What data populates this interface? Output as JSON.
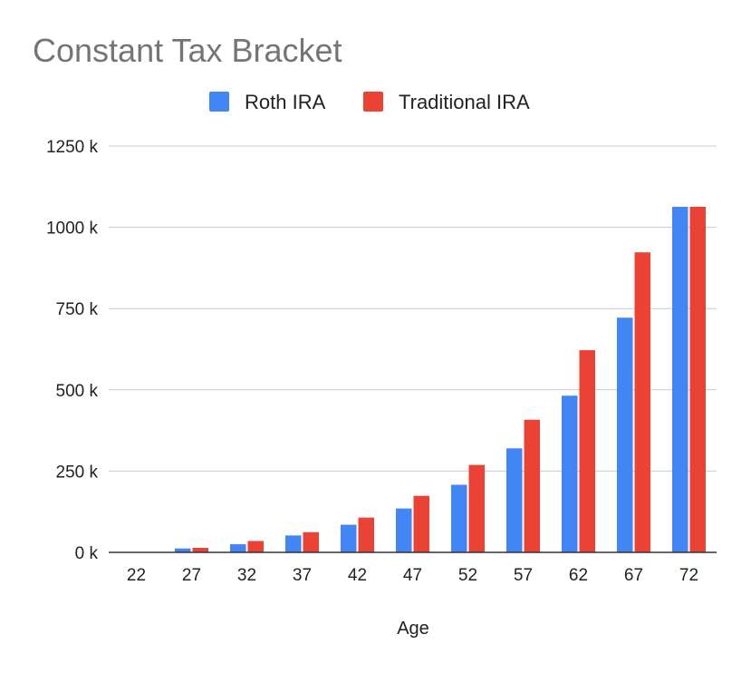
{
  "chart_data": {
    "type": "bar",
    "title": "Constant Tax Bracket",
    "xlabel": "Age",
    "ylabel": "",
    "ylim": [
      0,
      1250000
    ],
    "yticks": [
      0,
      250000,
      500000,
      750000,
      1000000,
      1250000
    ],
    "ytick_labels": [
      "0 k",
      "250 k",
      "500 k",
      "750 k",
      "1000 k",
      "1250 k"
    ],
    "categories": [
      "22",
      "27",
      "32",
      "37",
      "42",
      "47",
      "52",
      "57",
      "62",
      "67",
      "72"
    ],
    "grid": true,
    "legend_position": "top",
    "series": [
      {
        "name": "Roth IRA",
        "color": "#4285F4",
        "values": [
          0,
          12000,
          25000,
          52000,
          85000,
          135000,
          208000,
          320000,
          482000,
          722000,
          1063000
        ]
      },
      {
        "name": "Traditional IRA",
        "color": "#EA4335",
        "values": [
          0,
          14000,
          35000,
          62000,
          107000,
          174000,
          269000,
          408000,
          622000,
          923000,
          1063000
        ]
      }
    ]
  }
}
